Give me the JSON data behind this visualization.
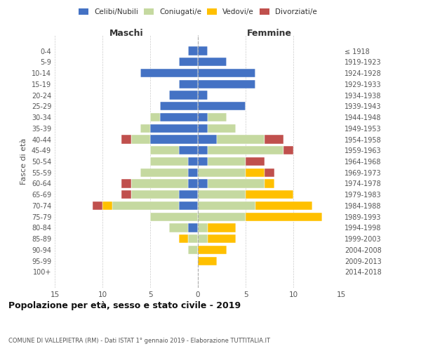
{
  "age_groups": [
    "0-4",
    "5-9",
    "10-14",
    "15-19",
    "20-24",
    "25-29",
    "30-34",
    "35-39",
    "40-44",
    "45-49",
    "50-54",
    "55-59",
    "60-64",
    "65-69",
    "70-74",
    "75-79",
    "80-84",
    "85-89",
    "90-94",
    "95-99",
    "100+"
  ],
  "birth_years": [
    "2014-2018",
    "2009-2013",
    "2004-2008",
    "1999-2003",
    "1994-1998",
    "1989-1993",
    "1984-1988",
    "1979-1983",
    "1974-1978",
    "1969-1973",
    "1964-1968",
    "1959-1963",
    "1954-1958",
    "1949-1953",
    "1944-1948",
    "1939-1943",
    "1934-1938",
    "1929-1933",
    "1924-1928",
    "1919-1923",
    "≤ 1918"
  ],
  "males": {
    "celibi": [
      1,
      2,
      6,
      2,
      3,
      4,
      4,
      5,
      5,
      2,
      1,
      1,
      1,
      2,
      2,
      0,
      1,
      0,
      0,
      0,
      0
    ],
    "coniugati": [
      0,
      0,
      0,
      0,
      0,
      0,
      1,
      1,
      2,
      3,
      4,
      5,
      6,
      5,
      7,
      5,
      2,
      1,
      1,
      0,
      0
    ],
    "vedovi": [
      0,
      0,
      0,
      0,
      0,
      0,
      0,
      0,
      0,
      0,
      0,
      0,
      0,
      0,
      1,
      0,
      0,
      1,
      0,
      0,
      0
    ],
    "divorziati": [
      0,
      0,
      0,
      0,
      0,
      0,
      0,
      0,
      1,
      0,
      0,
      0,
      1,
      1,
      1,
      0,
      0,
      0,
      0,
      0,
      0
    ]
  },
  "females": {
    "nubili": [
      1,
      3,
      6,
      6,
      1,
      5,
      1,
      1,
      2,
      1,
      1,
      0,
      1,
      0,
      0,
      0,
      0,
      0,
      0,
      0,
      0
    ],
    "coniugate": [
      0,
      0,
      0,
      0,
      0,
      0,
      2,
      3,
      5,
      8,
      4,
      5,
      6,
      5,
      6,
      5,
      1,
      1,
      0,
      0,
      0
    ],
    "vedove": [
      0,
      0,
      0,
      0,
      0,
      0,
      0,
      0,
      0,
      0,
      0,
      2,
      1,
      5,
      6,
      8,
      3,
      3,
      3,
      2,
      0
    ],
    "divorziate": [
      0,
      0,
      0,
      0,
      0,
      0,
      0,
      0,
      2,
      1,
      2,
      1,
      0,
      0,
      0,
      0,
      0,
      0,
      0,
      0,
      0
    ]
  },
  "colors": {
    "celibi_nubili": "#4472c4",
    "coniugati": "#c5d9a0",
    "vedovi": "#ffc000",
    "divorziati": "#c0504d"
  },
  "xlim": 15,
  "title": "Popolazione per età, sesso e stato civile - 2019",
  "subtitle": "COMUNE DI VALLEPIETRA (RM) - Dati ISTAT 1° gennaio 2019 - Elaborazione TUTTITALIA.IT",
  "ylabel_left": "Fasce di età",
  "xlabel_left": "Maschi",
  "xlabel_right": "Femmine",
  "background_color": "#ffffff",
  "grid_color": "#cccccc"
}
